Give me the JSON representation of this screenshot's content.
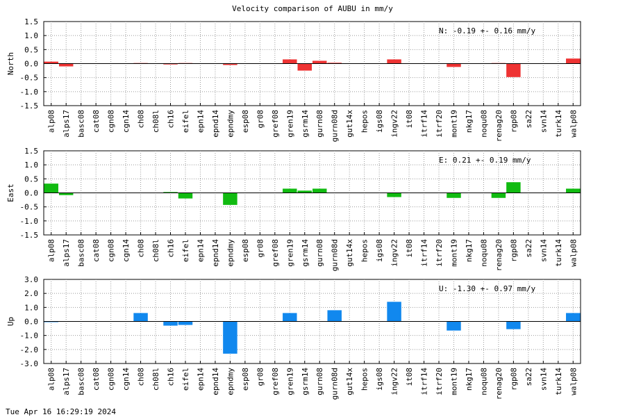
{
  "title": "Velocity comparison of AUBU in mm/y",
  "footer": "Tue Apr 16 16:29:19 2024",
  "chart_data": [
    {
      "type": "bar",
      "ylabel": "North",
      "annotation": "N:  -0.19 +-  0.16 mm/y",
      "color": "#ee3333",
      "ylim": [
        -1.5,
        1.5
      ],
      "yticks": [
        "1.5",
        "1.0",
        "0.5",
        "0.0",
        "-0.5",
        "-1.0",
        "-1.5"
      ],
      "grid": true,
      "categories": [
        "alp08",
        "alps17",
        "basc08",
        "cat08",
        "cgn08",
        "cgn14",
        "ch08",
        "ch08l",
        "ch16",
        "eifel",
        "epn14",
        "epnd14",
        "epndmy",
        "esp08",
        "gr08",
        "gref08",
        "gren19",
        "gsrm14",
        "gurn08",
        "gurn08d",
        "gut14x",
        "hepos",
        "igs08",
        "ingv22",
        "it08",
        "itrf14",
        "itrf20",
        "mont19",
        "nkg17",
        "noqu08",
        "renag20",
        "rgp08",
        "sa22",
        "svn14",
        "turk14",
        "walp08"
      ],
      "values": [
        0.07,
        -0.1,
        0,
        0,
        0,
        0,
        0.02,
        0,
        -0.03,
        0.02,
        0,
        0,
        -0.05,
        0,
        0,
        0,
        0.15,
        -0.25,
        0.1,
        0.03,
        0,
        0,
        0,
        0.15,
        0,
        0,
        0,
        -0.12,
        0,
        0,
        0.02,
        -0.48,
        0,
        0,
        0,
        0.18
      ]
    },
    {
      "type": "bar",
      "ylabel": "East",
      "annotation": "E:   0.21 +-  0.19 mm/y",
      "color": "#11bb11",
      "ylim": [
        -1.5,
        1.5
      ],
      "yticks": [
        "1.5",
        "1.0",
        "0.5",
        "0.0",
        "-0.5",
        "-1.0",
        "-1.5"
      ],
      "grid": true,
      "categories": [
        "alp08",
        "alps17",
        "basc08",
        "cat08",
        "cgn08",
        "cgn14",
        "ch08",
        "ch08l",
        "ch16",
        "eifel",
        "epn14",
        "epnd14",
        "epndmy",
        "esp08",
        "gr08",
        "gref08",
        "gren19",
        "gsrm14",
        "gurn08",
        "gurn08d",
        "gut14x",
        "hepos",
        "igs08",
        "ingv22",
        "it08",
        "itrf14",
        "itrf20",
        "mont19",
        "nkg17",
        "noqu08",
        "renag20",
        "rgp08",
        "sa22",
        "svn14",
        "turk14",
        "walp08"
      ],
      "values": [
        0.33,
        -0.08,
        0,
        0,
        0,
        0,
        0,
        0,
        0.03,
        -0.2,
        0,
        0,
        -0.43,
        0,
        0,
        0,
        0.15,
        0.08,
        0.15,
        0,
        0,
        0,
        0,
        -0.15,
        0,
        0,
        0,
        -0.18,
        0,
        0,
        -0.18,
        0.38,
        0,
        0,
        0,
        0.15
      ]
    },
    {
      "type": "bar",
      "ylabel": "Up",
      "annotation": "U:  -1.30 +-  0.97 mm/y",
      "color": "#1188ee",
      "ylim": [
        -3.0,
        3.0
      ],
      "yticks": [
        "3.0",
        "2.0",
        "1.0",
        "0.0",
        "-1.0",
        "-2.0",
        "-3.0"
      ],
      "grid": true,
      "categories": [
        "alp08",
        "alps17",
        "basc08",
        "cat08",
        "cgn08",
        "cgn14",
        "ch08",
        "ch08l",
        "ch16",
        "eifel",
        "epn14",
        "epnd14",
        "epndmy",
        "esp08",
        "gr08",
        "gref08",
        "gren19",
        "gsrm14",
        "gurn08",
        "gurn08d",
        "gut14x",
        "hepos",
        "igs08",
        "ingv22",
        "it08",
        "itrf14",
        "itrf20",
        "mont19",
        "nkg17",
        "noqu08",
        "renag20",
        "rgp08",
        "sa22",
        "svn14",
        "turk14",
        "walp08"
      ],
      "values": [
        -0.05,
        0,
        0,
        0,
        0,
        0,
        0.6,
        0,
        -0.3,
        -0.25,
        0,
        0,
        -2.3,
        0,
        0,
        0,
        0.6,
        0,
        0,
        0.8,
        0,
        0,
        0,
        1.4,
        0,
        0,
        0,
        -0.65,
        0,
        0,
        0,
        -0.55,
        0,
        0,
        0,
        0.6
      ]
    }
  ]
}
